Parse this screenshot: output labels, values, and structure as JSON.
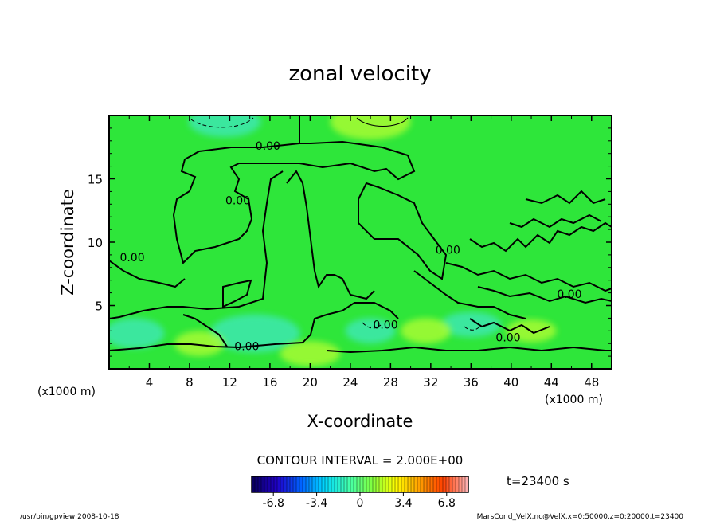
{
  "chart_data": {
    "type": "heatmap",
    "title": "zonal velocity",
    "xlabel": "X-coordinate",
    "ylabel": "Z-coordinate",
    "x_unit_left": "(x1000 m)",
    "x_unit_right": "(x1000 m)",
    "xlim": [
      0,
      50
    ],
    "ylim": [
      0,
      20
    ],
    "x_ticks": [
      4,
      8,
      12,
      16,
      20,
      24,
      28,
      32,
      36,
      40,
      44,
      48
    ],
    "y_ticks": [
      5,
      10,
      15
    ],
    "contour_interval_text": "CONTOUR INTERVAL = 2.000E+00",
    "time_label": "t=23400 s",
    "colorbar": {
      "min": -8.5,
      "max": 8.5,
      "ticks": [
        -6.8,
        -3.4,
        0,
        3.4,
        6.8
      ],
      "tick_labels": [
        "-6.8",
        "-3.4",
        "0",
        "3.4",
        "6.8"
      ],
      "colors": [
        "#0a0060",
        "#2000c8",
        "#0060ff",
        "#00d8ff",
        "#40ffb0",
        "#80ff40",
        "#ffff00",
        "#ffa000",
        "#ff4000",
        "#ffb0b0"
      ]
    },
    "background_color": "#2ee63a",
    "contour_labels": [
      {
        "text": "0.00",
        "x": 15.8,
        "y": 17.6
      },
      {
        "text": "0.00",
        "x": 12.8,
        "y": 13.3
      },
      {
        "text": "0.00",
        "x": 2.3,
        "y": 8.8
      },
      {
        "text": "0.00",
        "x": 13.7,
        "y": 1.8
      },
      {
        "text": "0.00",
        "x": 27.5,
        "y": 3.5
      },
      {
        "text": "0.00",
        "x": 33.7,
        "y": 9.4
      },
      {
        "text": "0.00",
        "x": 39.7,
        "y": 2.5
      },
      {
        "text": "0.00",
        "x": 45.8,
        "y": 5.9
      }
    ],
    "features": [
      {
        "kind": "negative",
        "x": 11.5,
        "y": 19.5,
        "rx": 3.6,
        "ry": 1.2
      },
      {
        "kind": "positive",
        "x": 26.0,
        "y": 19.5,
        "rx": 4.0,
        "ry": 1.4
      },
      {
        "kind": "negative",
        "x": 2.5,
        "y": 2.8,
        "rx": 3.0,
        "ry": 1.2
      },
      {
        "kind": "negative",
        "x": 14.5,
        "y": 2.8,
        "rx": 4.5,
        "ry": 1.5
      },
      {
        "kind": "negative",
        "x": 26.0,
        "y": 3.0,
        "rx": 2.5,
        "ry": 1.0
      },
      {
        "kind": "negative",
        "x": 36.0,
        "y": 3.5,
        "rx": 3.0,
        "ry": 1.0
      },
      {
        "kind": "positive",
        "x": 31.5,
        "y": 3.0,
        "rx": 2.5,
        "ry": 1.0
      },
      {
        "kind": "positive",
        "x": 20.0,
        "y": 1.2,
        "rx": 3.0,
        "ry": 1.0
      },
      {
        "kind": "positive",
        "x": 9.0,
        "y": 2.0,
        "rx": 2.5,
        "ry": 1.0
      },
      {
        "kind": "positive",
        "x": 42.0,
        "y": 3.0,
        "rx": 2.5,
        "ry": 0.9
      }
    ]
  },
  "footer": {
    "left": "/usr/bin/gpview   2008-10-18",
    "right": "MarsCond_VelX.nc@VelX,x=0:50000,z=0:20000,t=23400"
  }
}
